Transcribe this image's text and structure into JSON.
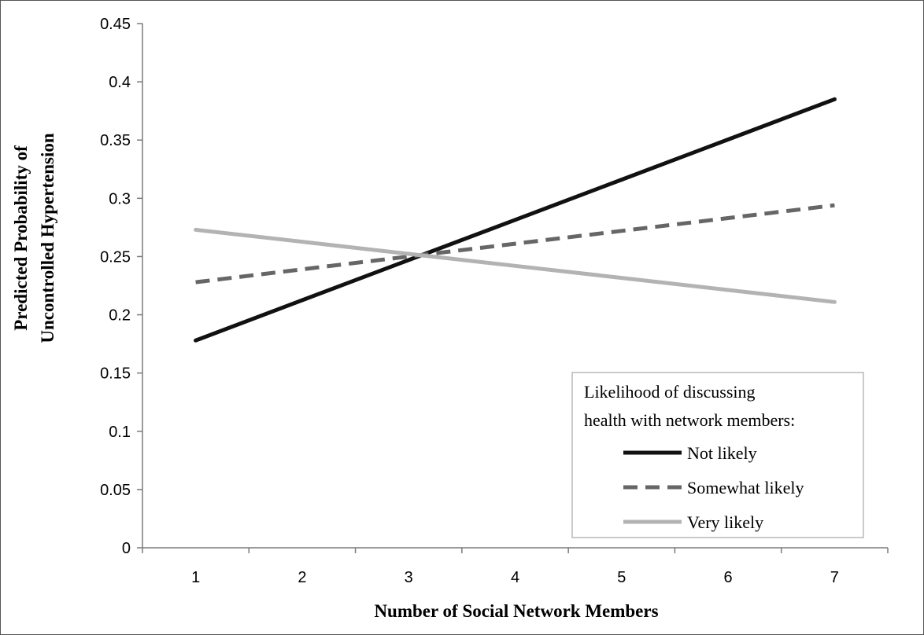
{
  "chart_data": {
    "type": "line",
    "title": "",
    "xlabel": "Number of Social Network Members",
    "ylabel_lines": [
      "Predicted Probability of",
      "Uncontrolled Hypertension"
    ],
    "x": [
      1,
      2,
      3,
      4,
      5,
      6,
      7
    ],
    "xlim": [
      0.5,
      7.5
    ],
    "ylim": [
      0,
      0.45
    ],
    "yticks": [
      "0",
      "0.05",
      "0.1",
      "0.15",
      "0.2",
      "0.25",
      "0.3",
      "0.35",
      "0.4",
      "0.45"
    ],
    "xticks": [
      "1",
      "2",
      "3",
      "4",
      "5",
      "6",
      "7"
    ],
    "grid": false,
    "legend": {
      "placement": "bottom-right",
      "title_lines": [
        "Likelihood of discussing",
        "health with network members:"
      ]
    },
    "series": [
      {
        "name": "Not likely",
        "color": "#111111",
        "style": "solid",
        "values": [
          0.178,
          0.2125,
          0.247,
          0.2815,
          0.316,
          0.3505,
          0.385
        ]
      },
      {
        "name": "Somewhat likely",
        "color": "#666666",
        "style": "dashed",
        "values": [
          0.228,
          0.239,
          0.25,
          0.261,
          0.272,
          0.283,
          0.294
        ]
      },
      {
        "name": "Very likely",
        "color": "#b3b3b3",
        "style": "solid",
        "values": [
          0.273,
          0.2627,
          0.2523,
          0.242,
          0.2317,
          0.2213,
          0.211
        ]
      }
    ]
  }
}
